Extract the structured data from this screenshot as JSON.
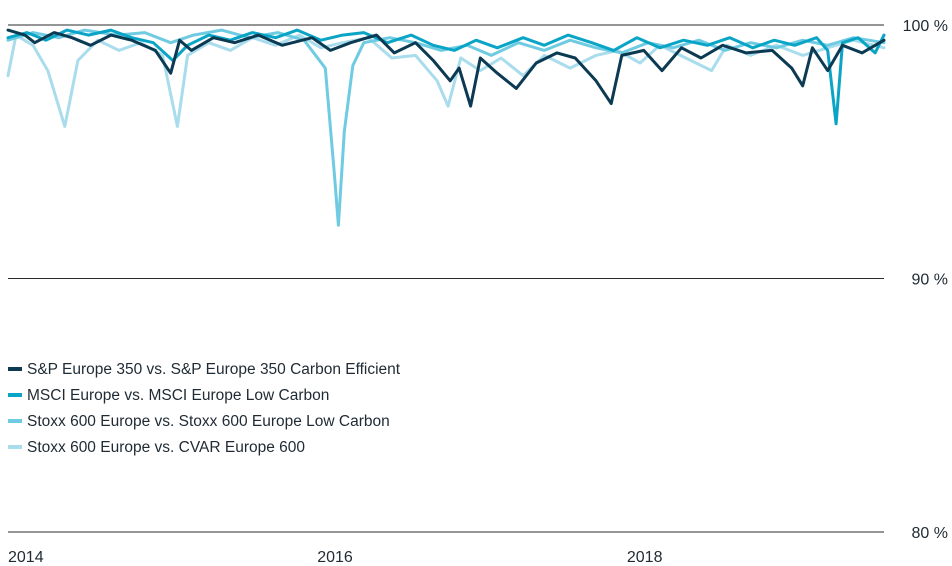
{
  "chart_data": {
    "type": "line",
    "title": "",
    "xlabel": "",
    "ylabel": "",
    "ylim": [
      80,
      100
    ],
    "xlim": [
      "2014-01-01",
      "2019-08-31"
    ],
    "grid": true,
    "legend_position": "center-left",
    "y_ticks": [
      {
        "value": 100,
        "label": "100 %"
      },
      {
        "value": 90,
        "label": "90 %"
      },
      {
        "value": 80,
        "label": "80 %"
      }
    ],
    "x_ticks": [
      {
        "value": "2014-01-01",
        "label": "2014"
      },
      {
        "value": "2016-01-01",
        "label": "2016"
      },
      {
        "value": "2018-01-01",
        "label": "2018"
      }
    ],
    "series": [
      {
        "name": "S&P Europe 350 vs. S&P Europe 350 Carbon Efficient",
        "color": "#0b3a52",
        "points": [
          [
            "2014-01-01",
            99.8
          ],
          [
            "2014-02-10",
            99.6
          ],
          [
            "2014-03-05",
            99.3
          ],
          [
            "2014-04-20",
            99.7
          ],
          [
            "2014-06-01",
            99.5
          ],
          [
            "2014-07-15",
            99.2
          ],
          [
            "2014-09-01",
            99.6
          ],
          [
            "2014-10-20",
            99.4
          ],
          [
            "2014-12-15",
            99.0
          ],
          [
            "2015-01-20",
            98.1
          ],
          [
            "2015-02-10",
            99.4
          ],
          [
            "2015-03-10",
            99.0
          ],
          [
            "2015-05-01",
            99.5
          ],
          [
            "2015-06-20",
            99.3
          ],
          [
            "2015-08-15",
            99.6
          ],
          [
            "2015-10-10",
            99.2
          ],
          [
            "2015-12-20",
            99.5
          ],
          [
            "2016-02-01",
            99.0
          ],
          [
            "2016-03-20",
            99.3
          ],
          [
            "2016-05-20",
            99.6
          ],
          [
            "2016-07-01",
            98.9
          ],
          [
            "2016-08-20",
            99.3
          ],
          [
            "2016-10-01",
            98.6
          ],
          [
            "2016-11-10",
            97.8
          ],
          [
            "2016-12-01",
            98.3
          ],
          [
            "2016-12-28",
            96.8
          ],
          [
            "2017-01-20",
            98.7
          ],
          [
            "2017-03-01",
            98.1
          ],
          [
            "2017-04-15",
            97.5
          ],
          [
            "2017-06-01",
            98.5
          ],
          [
            "2017-07-20",
            98.9
          ],
          [
            "2017-09-01",
            98.7
          ],
          [
            "2017-10-20",
            97.8
          ],
          [
            "2017-11-25",
            96.9
          ],
          [
            "2017-12-20",
            98.8
          ],
          [
            "2018-02-10",
            99.0
          ],
          [
            "2018-03-25",
            98.2
          ],
          [
            "2018-05-10",
            99.1
          ],
          [
            "2018-06-25",
            98.7
          ],
          [
            "2018-08-15",
            99.2
          ],
          [
            "2018-10-10",
            98.9
          ],
          [
            "2018-12-10",
            99.0
          ],
          [
            "2019-01-25",
            98.3
          ],
          [
            "2019-02-20",
            97.6
          ],
          [
            "2019-03-15",
            99.1
          ],
          [
            "2019-04-20",
            98.2
          ],
          [
            "2019-05-25",
            99.2
          ],
          [
            "2019-07-10",
            98.9
          ],
          [
            "2019-08-31",
            99.4
          ]
        ]
      },
      {
        "name": "MSCI Europe vs. MSCI Europe Low Carbon",
        "color": "#0aa5c6",
        "points": [
          [
            "2014-01-01",
            99.5
          ],
          [
            "2014-02-15",
            99.7
          ],
          [
            "2014-04-01",
            99.4
          ],
          [
            "2014-05-20",
            99.8
          ],
          [
            "2014-07-10",
            99.6
          ],
          [
            "2014-09-01",
            99.8
          ],
          [
            "2014-10-20",
            99.5
          ],
          [
            "2014-12-10",
            99.3
          ],
          [
            "2015-01-25",
            98.6
          ],
          [
            "2015-03-01",
            99.2
          ],
          [
            "2015-04-20",
            99.6
          ],
          [
            "2015-06-10",
            99.4
          ],
          [
            "2015-08-01",
            99.7
          ],
          [
            "2015-09-25",
            99.5
          ],
          [
            "2015-11-15",
            99.8
          ],
          [
            "2016-01-10",
            99.4
          ],
          [
            "2016-03-01",
            99.6
          ],
          [
            "2016-04-20",
            99.7
          ],
          [
            "2016-06-15",
            99.3
          ],
          [
            "2016-08-10",
            99.6
          ],
          [
            "2016-10-01",
            99.2
          ],
          [
            "2016-11-20",
            99.0
          ],
          [
            "2017-01-10",
            99.4
          ],
          [
            "2017-03-01",
            99.1
          ],
          [
            "2017-05-01",
            99.5
          ],
          [
            "2017-06-20",
            99.2
          ],
          [
            "2017-08-15",
            99.6
          ],
          [
            "2017-10-10",
            99.3
          ],
          [
            "2017-12-01",
            99.0
          ],
          [
            "2018-01-25",
            99.5
          ],
          [
            "2018-03-20",
            99.1
          ],
          [
            "2018-05-15",
            99.4
          ],
          [
            "2018-07-10",
            99.2
          ],
          [
            "2018-09-01",
            99.5
          ],
          [
            "2018-10-25",
            99.1
          ],
          [
            "2018-12-15",
            99.4
          ],
          [
            "2019-02-01",
            99.2
          ],
          [
            "2019-03-25",
            99.5
          ],
          [
            "2019-04-20",
            99.0
          ],
          [
            "2019-05-10",
            96.1
          ],
          [
            "2019-05-25",
            99.3
          ],
          [
            "2019-07-01",
            99.5
          ],
          [
            "2019-08-10",
            98.9
          ],
          [
            "2019-08-31",
            99.6
          ]
        ]
      },
      {
        "name": "Stoxx 600 Europe vs. Stoxx 600 Europe Low Carbon",
        "color": "#6fcbe2",
        "points": [
          [
            "2014-01-01",
            99.4
          ],
          [
            "2014-03-01",
            99.7
          ],
          [
            "2014-05-01",
            99.5
          ],
          [
            "2014-07-01",
            99.8
          ],
          [
            "2014-09-15",
            99.6
          ],
          [
            "2014-11-20",
            99.7
          ],
          [
            "2015-01-20",
            99.3
          ],
          [
            "2015-03-15",
            99.6
          ],
          [
            "2015-05-20",
            99.8
          ],
          [
            "2015-07-25",
            99.5
          ],
          [
            "2015-09-30",
            99.7
          ],
          [
            "2015-12-01",
            99.4
          ],
          [
            "2016-01-20",
            98.3
          ],
          [
            "2016-02-10",
            94.2
          ],
          [
            "2016-02-20",
            92.1
          ],
          [
            "2016-03-05",
            95.8
          ],
          [
            "2016-03-25",
            98.4
          ],
          [
            "2016-04-20",
            99.3
          ],
          [
            "2016-06-20",
            99.5
          ],
          [
            "2016-08-20",
            99.3
          ],
          [
            "2016-10-20",
            99.0
          ],
          [
            "2016-12-20",
            99.2
          ],
          [
            "2017-02-15",
            98.8
          ],
          [
            "2017-04-20",
            99.3
          ],
          [
            "2017-06-20",
            99.0
          ],
          [
            "2017-08-20",
            99.4
          ],
          [
            "2017-10-20",
            99.1
          ],
          [
            "2017-12-20",
            98.9
          ],
          [
            "2018-02-20",
            99.3
          ],
          [
            "2018-04-20",
            99.1
          ],
          [
            "2018-06-20",
            99.4
          ],
          [
            "2018-08-20",
            99.0
          ],
          [
            "2018-10-20",
            99.3
          ],
          [
            "2018-12-20",
            99.1
          ],
          [
            "2019-02-20",
            99.4
          ],
          [
            "2019-04-20",
            99.2
          ],
          [
            "2019-06-20",
            99.5
          ],
          [
            "2019-08-31",
            99.3
          ]
        ]
      },
      {
        "name": "Stoxx 600 Europe vs. CVAR Europe 600",
        "color": "#a9dcec",
        "points": [
          [
            "2014-01-01",
            98.0
          ],
          [
            "2014-01-20",
            99.6
          ],
          [
            "2014-03-01",
            99.2
          ],
          [
            "2014-04-05",
            98.2
          ],
          [
            "2014-05-15",
            96.0
          ],
          [
            "2014-06-15",
            98.6
          ],
          [
            "2014-08-01",
            99.4
          ],
          [
            "2014-09-20",
            99.0
          ],
          [
            "2014-11-10",
            99.3
          ],
          [
            "2015-01-01",
            98.8
          ],
          [
            "2015-02-05",
            96.0
          ],
          [
            "2015-03-01",
            98.8
          ],
          [
            "2015-04-20",
            99.3
          ],
          [
            "2015-06-10",
            99.0
          ],
          [
            "2015-08-01",
            99.5
          ],
          [
            "2015-09-25",
            99.2
          ],
          [
            "2015-11-20",
            99.6
          ],
          [
            "2016-01-10",
            99.1
          ],
          [
            "2016-03-01",
            99.3
          ],
          [
            "2016-05-01",
            99.5
          ],
          [
            "2016-06-25",
            98.7
          ],
          [
            "2016-08-20",
            98.8
          ],
          [
            "2016-10-10",
            97.8
          ],
          [
            "2016-11-05",
            96.8
          ],
          [
            "2016-12-05",
            98.7
          ],
          [
            "2017-01-20",
            98.2
          ],
          [
            "2017-03-10",
            98.7
          ],
          [
            "2017-05-01",
            98.0
          ],
          [
            "2017-06-20",
            98.8
          ],
          [
            "2017-08-20",
            98.3
          ],
          [
            "2017-10-20",
            98.8
          ],
          [
            "2017-12-10",
            99.0
          ],
          [
            "2018-02-01",
            98.5
          ],
          [
            "2018-03-20",
            99.2
          ],
          [
            "2018-05-20",
            98.7
          ],
          [
            "2018-07-20",
            98.2
          ],
          [
            "2018-08-25",
            99.2
          ],
          [
            "2018-10-20",
            98.8
          ],
          [
            "2018-12-20",
            99.2
          ],
          [
            "2019-02-20",
            98.8
          ],
          [
            "2019-04-20",
            99.1
          ],
          [
            "2019-06-20",
            99.4
          ],
          [
            "2019-08-31",
            99.1
          ]
        ]
      }
    ]
  }
}
